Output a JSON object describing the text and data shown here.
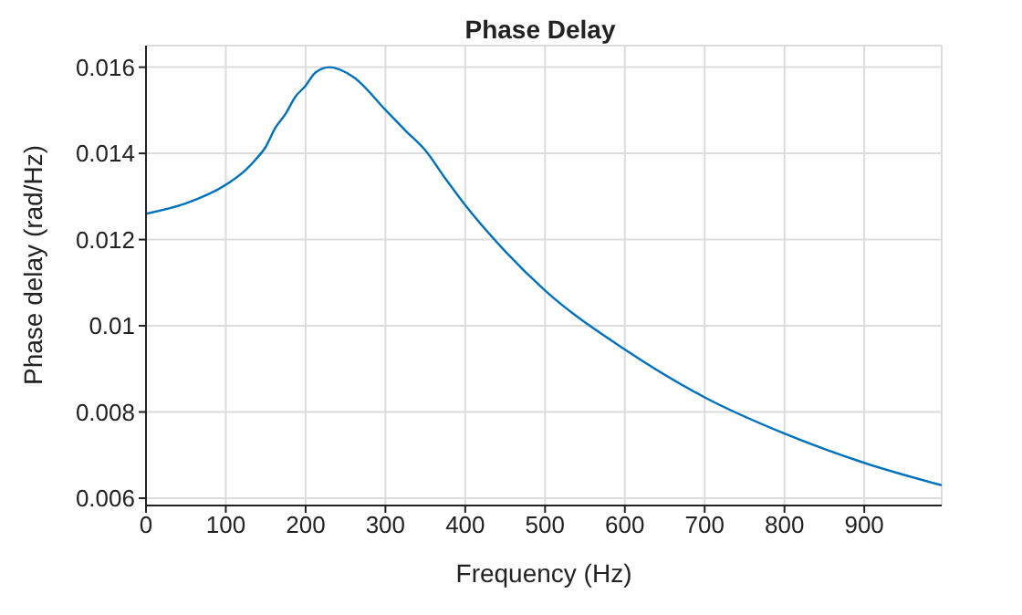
{
  "chart_data": {
    "type": "line",
    "title": "Phase Delay",
    "xlabel": "Frequency (Hz)",
    "ylabel": "Phase delay (rad/Hz)",
    "x": [
      0,
      50,
      100,
      125,
      137,
      150,
      162,
      175,
      187,
      200,
      212,
      230,
      260,
      300,
      325,
      350,
      375,
      400,
      450,
      500,
      600,
      700,
      800,
      900,
      997
    ],
    "series": [
      {
        "color": "#0072bd",
        "values": [
          0.0126,
          0.01284,
          0.01327,
          0.01362,
          0.01385,
          0.01415,
          0.01459,
          0.01492,
          0.01531,
          0.01557,
          0.01587,
          0.016,
          0.01577,
          0.01501,
          0.01453,
          0.01407,
          0.01342,
          0.0128,
          0.01173,
          0.01082,
          0.00945,
          0.00834,
          0.0075,
          0.00682,
          0.0063
        ]
      }
    ],
    "xlim": [
      0,
      997
    ],
    "xticks": [
      0,
      100,
      200,
      300,
      400,
      500,
      600,
      700,
      800,
      900
    ],
    "ylim": [
      0.00583,
      0.0165
    ],
    "yticks": [
      0.006,
      0.008,
      0.01,
      0.012,
      0.014,
      0.016
    ],
    "grid": true,
    "marker": "none",
    "line_style": "solid"
  }
}
